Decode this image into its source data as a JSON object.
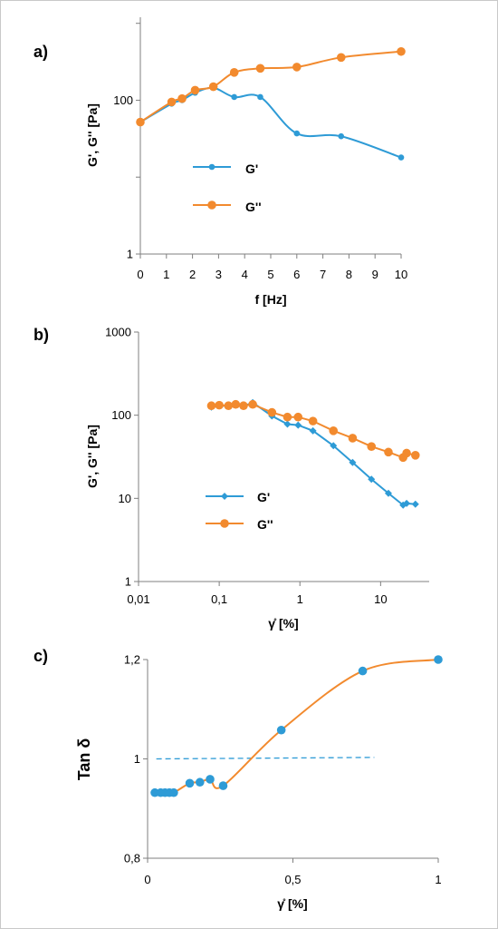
{
  "chart_data": [
    {
      "panel_label": "a)",
      "type": "line",
      "xlabel": "f [Hz]",
      "ylabel": "G', G'' [Pa]",
      "x_scale": "linear",
      "y_scale": "log",
      "xlim": [
        0,
        10
      ],
      "ylim": [
        1,
        1200
      ],
      "xticks": [
        0,
        1,
        2,
        3,
        4,
        5,
        6,
        7,
        8,
        9,
        10
      ],
      "x_tick_labels": [
        "0",
        "1",
        "2",
        "3",
        "4",
        "5",
        "6",
        "7",
        "8",
        "9",
        "10"
      ],
      "yticks": [
        1,
        100
      ],
      "y_tick_labels": [
        "1",
        "100"
      ],
      "legend_position": "middle-left",
      "series": [
        {
          "name": "G'",
          "color": "#2e9bd6",
          "marker": "circle-small",
          "x": [
            0,
            1.2,
            1.6,
            2.1,
            2.8,
            3.6,
            4.6,
            6.0,
            7.7,
            10.0
          ],
          "y": [
            52,
            90,
            100,
            125,
            145,
            110,
            110,
            37,
            34,
            18
          ]
        },
        {
          "name": "G''",
          "color": "#f28a2e",
          "marker": "circle",
          "x": [
            0,
            1.2,
            1.6,
            2.1,
            2.8,
            3.6,
            4.6,
            6.0,
            7.7,
            10.0
          ],
          "y": [
            52,
            95,
            105,
            135,
            150,
            230,
            260,
            270,
            360,
            430
          ]
        }
      ]
    },
    {
      "panel_label": "b)",
      "type": "line",
      "xlabel": "γ̊ [%]",
      "ylabel": "G', G'' [Pa]",
      "x_scale": "log",
      "y_scale": "log",
      "xlim": [
        0.01,
        40
      ],
      "ylim": [
        1,
        1000
      ],
      "xticks": [
        0.01,
        0.1,
        1,
        10
      ],
      "x_tick_labels": [
        "0,01",
        "0,1",
        "1",
        "10"
      ],
      "yticks": [
        1,
        10,
        100,
        1000
      ],
      "y_tick_labels": [
        "1",
        "10",
        "100",
        "1000"
      ],
      "legend_position": "bottom-left",
      "series": [
        {
          "name": "G'",
          "color": "#2e9bd6",
          "marker": "diamond",
          "x": [
            0.08,
            0.1,
            0.13,
            0.16,
            0.2,
            0.26,
            0.45,
            0.7,
            0.95,
            1.45,
            2.6,
            4.5,
            7.7,
            12.5,
            19,
            21,
            27
          ],
          "y": [
            125,
            130,
            130,
            132,
            128,
            142,
            98,
            78,
            76,
            65,
            43,
            27,
            17,
            11.5,
            8.3,
            8.7,
            8.5
          ]
        },
        {
          "name": "G''",
          "color": "#f28a2e",
          "marker": "circle",
          "x": [
            0.08,
            0.1,
            0.13,
            0.16,
            0.2,
            0.26,
            0.45,
            0.7,
            0.95,
            1.45,
            2.6,
            4.5,
            7.7,
            12.5,
            19,
            21,
            27
          ],
          "y": [
            130,
            132,
            130,
            135,
            130,
            135,
            108,
            95,
            95,
            85,
            65,
            53,
            42,
            36,
            31,
            35,
            33
          ]
        }
      ]
    },
    {
      "panel_label": "c)",
      "type": "line",
      "xlabel": "γ̊ [%]",
      "ylabel": "Tan δ",
      "x_scale": "linear",
      "y_scale": "linear",
      "xlim": [
        0,
        1
      ],
      "ylim": [
        0.8,
        1.2
      ],
      "xticks": [
        0,
        0.5,
        1
      ],
      "x_tick_labels": [
        "0",
        "0,5",
        "1"
      ],
      "yticks": [
        0.8,
        1.0,
        1.2
      ],
      "y_tick_labels": [
        "0,8",
        "1",
        "1,2"
      ],
      "reference_line": {
        "y_start": 1.0,
        "y_end": 1.003,
        "x_start": 0.03,
        "x_end": 0.78,
        "style": "dashed",
        "color": "#2e9bd6"
      },
      "series": [
        {
          "color": "#f28a2e",
          "marker_color": "#2e9bd6",
          "marker": "circle",
          "x": [
            0.025,
            0.045,
            0.06,
            0.075,
            0.09,
            0.145,
            0.18,
            0.215,
            0.26,
            0.46,
            0.74,
            1.0
          ],
          "y": [
            0.932,
            0.932,
            0.932,
            0.932,
            0.932,
            0.951,
            0.953,
            0.959,
            0.946,
            1.058,
            1.177,
            1.2
          ]
        }
      ]
    }
  ]
}
